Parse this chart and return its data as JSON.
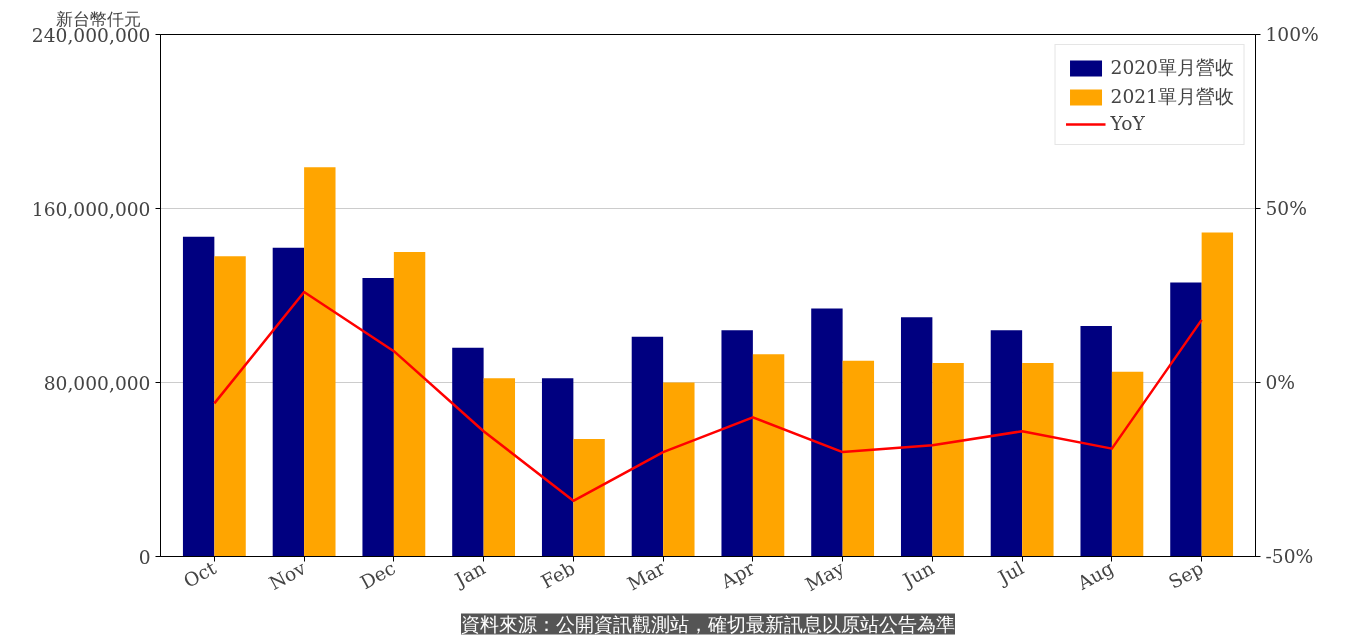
{
  "chart_data": {
    "type": "bar",
    "ylabel": "新台幣仟元",
    "categories": [
      "Oct",
      "Nov",
      "Dec",
      "Jan",
      "Feb",
      "Mar",
      "Apr",
      "May",
      "Jun",
      "Jul",
      "Aug",
      "Sep"
    ],
    "series": [
      {
        "name": "2020單月營收",
        "color": "#000080",
        "values": [
          147000000,
          142000000,
          128000000,
          96000000,
          82000000,
          101000000,
          104000000,
          114000000,
          110000000,
          104000000,
          106000000,
          126000000
        ]
      },
      {
        "name": "2021單月營收",
        "color": "#ffa500",
        "values": [
          138000000,
          179000000,
          140000000,
          82000000,
          54000000,
          80000000,
          93000000,
          90000000,
          89000000,
          89000000,
          85000000,
          149000000
        ]
      },
      {
        "name": "YoY",
        "type": "line",
        "axis": "y2",
        "color": "#ff0000",
        "values": [
          -6,
          26,
          9,
          -14,
          -34,
          -20,
          -10,
          -20,
          -18,
          -14,
          -19,
          18
        ]
      }
    ],
    "ylim": [
      0,
      240000000
    ],
    "yticks": [
      {
        "value": 0,
        "label": "0"
      },
      {
        "value": 80000000,
        "label": "80,000,000"
      },
      {
        "value": 160000000,
        "label": "160,000,000"
      },
      {
        "value": 240000000,
        "label": "240,000,000"
      }
    ],
    "y2lim": [
      -50,
      100
    ],
    "y2ticks": [
      {
        "value": -50,
        "label": "-50%"
      },
      {
        "value": 0,
        "label": "0%"
      },
      {
        "value": 50,
        "label": "50%"
      },
      {
        "value": 100,
        "label": "100%"
      }
    ],
    "grid": "y",
    "legend": "top right",
    "marker": "none",
    "line_style": "solid",
    "annotations": [
      "資料來源：公開資訊觀測站，確切最新訊息以原站公告為準"
    ]
  }
}
